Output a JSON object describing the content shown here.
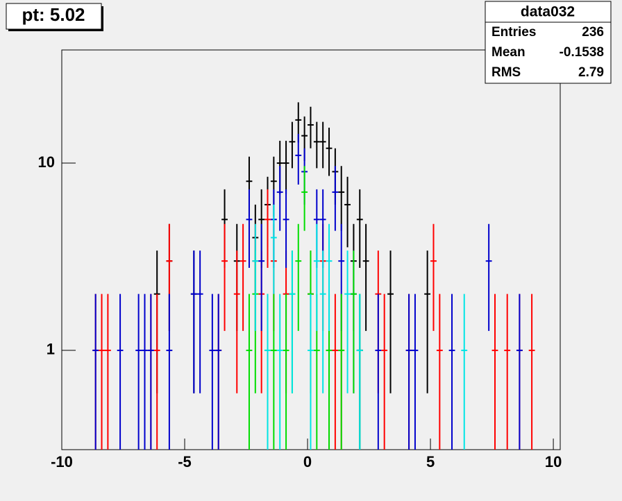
{
  "chart_data": {
    "type": "errorbar",
    "label": "pt: 5.02",
    "stats": {
      "title": "data032",
      "rows": [
        [
          "Entries",
          "236"
        ],
        [
          "Mean",
          "-0.1538"
        ],
        [
          "RMS",
          "2.79"
        ]
      ]
    },
    "xlim": [
      -10,
      10.28
    ],
    "xticks": [
      -10,
      -5,
      0,
      5,
      10
    ],
    "ylim": [
      0.295,
      40.2
    ],
    "yticks": [
      1,
      10
    ],
    "log_y": true,
    "series": [
      {
        "color": "#000000",
        "x": [
          -6.125,
          -5.625,
          -4.625,
          -3.375,
          -2.875,
          -2.375,
          -2.125,
          -1.875,
          -1.625,
          -1.375,
          -1.125,
          -0.875,
          -0.625,
          -0.375,
          -0.125,
          0.125,
          0.375,
          0.625,
          0.875,
          1.125,
          1.375,
          1.625,
          1.875,
          2.125,
          2.375,
          3.375,
          4.875
        ],
        "values": [
          2,
          3,
          2,
          5,
          3,
          8,
          4,
          5,
          6,
          8,
          10,
          10,
          13,
          17,
          14,
          16,
          13,
          13,
          12,
          9,
          7,
          6,
          3,
          5,
          3,
          2,
          2
        ],
        "errors": [
          1.41,
          1.73,
          1.41,
          2.24,
          1.73,
          2.83,
          2,
          2.24,
          2.45,
          2.83,
          3.16,
          3.16,
          3.61,
          4.12,
          3.74,
          4,
          3.61,
          3.61,
          3.46,
          3,
          2.65,
          2.45,
          1.73,
          2.24,
          1.73,
          1.41,
          1.41
        ]
      },
      {
        "color": "#ff0000",
        "x": [
          -8.625,
          -8.375,
          -8.125,
          -6.375,
          -6.125,
          -5.625,
          -3.625,
          -3.375,
          -2.875,
          -2.625,
          -2.125,
          -1.875,
          -1.625,
          -1.375,
          -0.875,
          0.125,
          0.625,
          0.875,
          1.125,
          1.375,
          2.125,
          2.875,
          3.125,
          4.125,
          5.125,
          5.375,
          7.625,
          8.125,
          8.625,
          9.125
        ],
        "values": [
          1,
          1,
          1,
          1,
          1,
          3,
          1,
          3,
          2,
          3,
          3,
          2,
          5,
          3,
          2,
          2,
          3,
          1,
          1,
          1,
          1,
          2,
          1,
          1,
          3,
          1,
          1,
          1,
          1,
          1
        ],
        "errors": [
          1,
          1,
          1,
          1,
          1,
          1.73,
          1,
          1.73,
          1.41,
          1.73,
          1.73,
          1.41,
          2.24,
          1.73,
          1.41,
          1.41,
          1.73,
          1,
          1,
          1,
          1,
          1.41,
          1,
          1,
          1.73,
          1,
          1,
          1,
          1,
          1
        ]
      },
      {
        "color": "#0000cc",
        "x": [
          -8.625,
          -7.625,
          -6.875,
          -6.625,
          -6.375,
          -5.625,
          -4.625,
          -4.375,
          -3.875,
          -3.625,
          -2.375,
          -1.875,
          -1.375,
          -1.125,
          -0.875,
          -0.375,
          -0.125,
          0.375,
          0.625,
          1.125,
          1.375,
          1.875,
          2.125,
          2.875,
          4.125,
          4.375,
          5.875,
          7.375,
          8.625
        ],
        "values": [
          1,
          1,
          1,
          1,
          1,
          1,
          2,
          2,
          1,
          1,
          5,
          3,
          5,
          7,
          5,
          11,
          9,
          5,
          5,
          7,
          3,
          2,
          1,
          1,
          1,
          1,
          1,
          3,
          1
        ],
        "errors": [
          1,
          1,
          1,
          1,
          1,
          1,
          1.41,
          1.41,
          1,
          1,
          2.24,
          1.73,
          2.24,
          2.65,
          2.24,
          3.32,
          3,
          2.24,
          2.24,
          2.65,
          1.73,
          1.41,
          1,
          1,
          1,
          1,
          1,
          1.73,
          1
        ]
      },
      {
        "color": "#00dd00",
        "x": [
          -2.375,
          -2.125,
          -1.625,
          -1.375,
          -0.875,
          -0.625,
          -0.375,
          -0.125,
          0.125,
          0.375,
          0.875,
          1.375,
          1.875,
          2.125
        ],
        "values": [
          1,
          2,
          1,
          1,
          1,
          2,
          3,
          7,
          2,
          1,
          1,
          1,
          2,
          1
        ],
        "errors": [
          1,
          1.41,
          1,
          1,
          1,
          1.41,
          1.73,
          2.65,
          1.41,
          1,
          1,
          1,
          1.41,
          1
        ]
      },
      {
        "color": "#00e5e5",
        "x": [
          -2.125,
          -1.625,
          -1.375,
          -1.125,
          -0.625,
          0.125,
          0.375,
          0.625,
          0.875,
          1.625,
          2.125,
          6.375
        ],
        "values": [
          3,
          1,
          4,
          1,
          2,
          1,
          3,
          2,
          3,
          2,
          1,
          1
        ],
        "errors": [
          1.73,
          1,
          2,
          1,
          1.41,
          1,
          1.73,
          1.41,
          1.73,
          1.41,
          1,
          1
        ]
      }
    ]
  }
}
